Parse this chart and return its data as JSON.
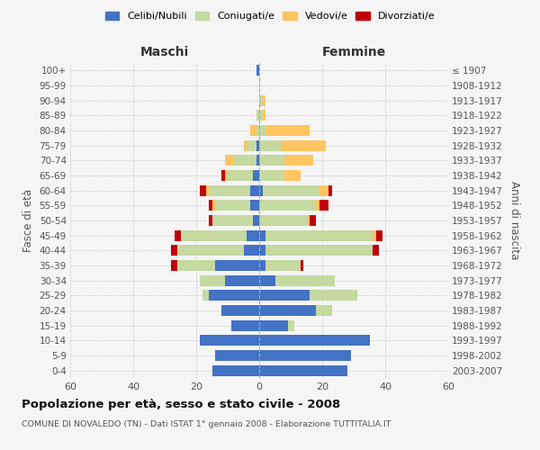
{
  "age_groups": [
    "0-4",
    "5-9",
    "10-14",
    "15-19",
    "20-24",
    "25-29",
    "30-34",
    "35-39",
    "40-44",
    "45-49",
    "50-54",
    "55-59",
    "60-64",
    "65-69",
    "70-74",
    "75-79",
    "80-84",
    "85-89",
    "90-94",
    "95-99",
    "100+"
  ],
  "birth_years": [
    "2003-2007",
    "1998-2002",
    "1993-1997",
    "1988-1992",
    "1983-1987",
    "1978-1982",
    "1973-1977",
    "1968-1972",
    "1963-1967",
    "1958-1962",
    "1953-1957",
    "1948-1952",
    "1943-1947",
    "1938-1942",
    "1933-1937",
    "1928-1932",
    "1923-1927",
    "1918-1922",
    "1913-1917",
    "1908-1912",
    "≤ 1907"
  ],
  "colors": {
    "celibi": "#4472c4",
    "coniugati": "#c5d9a0",
    "vedovi": "#ffc560",
    "divorziati": "#c0000a"
  },
  "maschi": {
    "celibi": [
      15,
      14,
      19,
      9,
      12,
      16,
      11,
      14,
      5,
      4,
      2,
      3,
      3,
      2,
      1,
      1,
      0,
      0,
      0,
      0,
      1
    ],
    "coniugati": [
      0,
      0,
      0,
      0,
      0,
      2,
      8,
      12,
      21,
      21,
      13,
      11,
      13,
      8,
      7,
      3,
      1,
      1,
      0,
      0,
      0
    ],
    "vedovi": [
      0,
      0,
      0,
      0,
      0,
      0,
      0,
      0,
      0,
      0,
      0,
      1,
      1,
      1,
      3,
      1,
      2,
      0,
      0,
      0,
      0
    ],
    "divorziati": [
      0,
      0,
      0,
      0,
      0,
      0,
      0,
      2,
      2,
      2,
      1,
      1,
      2,
      1,
      0,
      0,
      0,
      0,
      0,
      0,
      0
    ]
  },
  "femmine": {
    "celibi": [
      28,
      29,
      35,
      9,
      18,
      16,
      5,
      2,
      2,
      2,
      0,
      0,
      1,
      0,
      0,
      0,
      0,
      0,
      0,
      0,
      0
    ],
    "coniugati": [
      0,
      0,
      0,
      2,
      5,
      15,
      19,
      11,
      34,
      34,
      15,
      18,
      18,
      8,
      8,
      7,
      2,
      1,
      1,
      0,
      0
    ],
    "vedovi": [
      0,
      0,
      0,
      0,
      0,
      0,
      0,
      0,
      0,
      1,
      1,
      1,
      3,
      5,
      9,
      14,
      14,
      1,
      1,
      0,
      0
    ],
    "divorziati": [
      0,
      0,
      0,
      0,
      0,
      0,
      0,
      1,
      2,
      2,
      2,
      3,
      1,
      0,
      0,
      0,
      0,
      0,
      0,
      0,
      0
    ]
  },
  "xlim": 60,
  "title": "Popolazione per età, sesso e stato civile - 2008",
  "subtitle": "COMUNE DI NOVALEDO (TN) - Dati ISTAT 1° gennaio 2008 - Elaborazione TUTTITALIA.IT",
  "ylabel_left": "Fasce di età",
  "ylabel_right": "Anni di nascita",
  "xlabel_left": "Maschi",
  "xlabel_right": "Femmine",
  "background_color": "#f5f5f5",
  "grid_color": "#cccccc"
}
